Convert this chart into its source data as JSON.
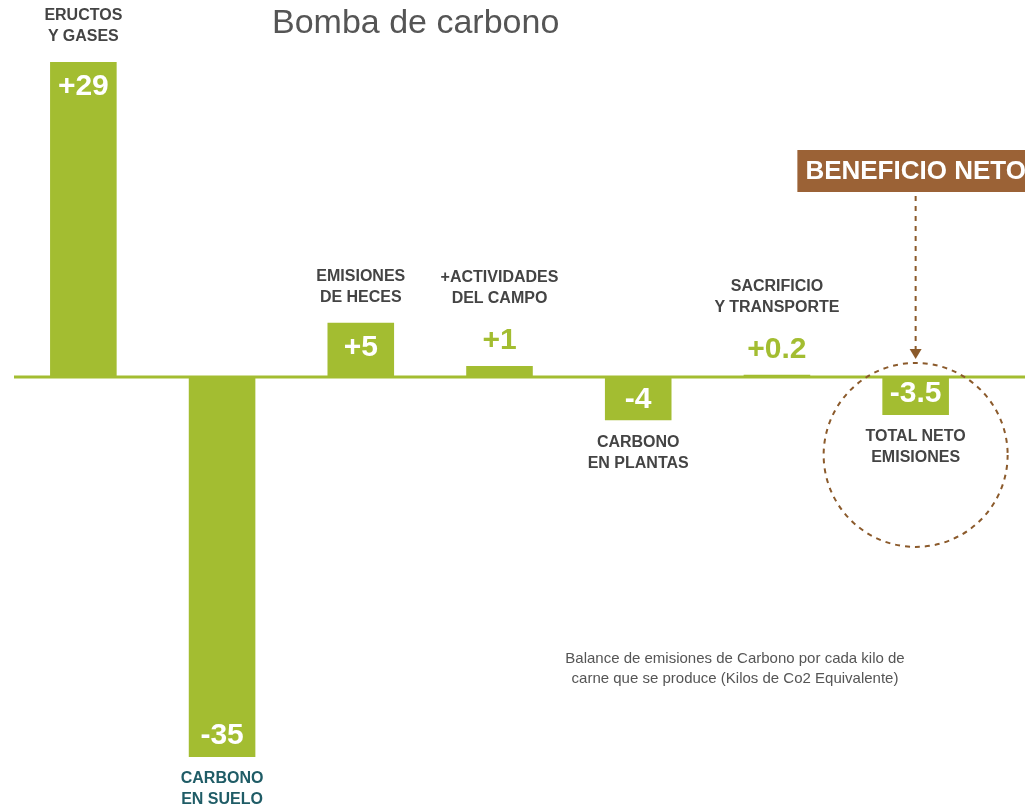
{
  "chart_data": {
    "type": "bar",
    "title": "Bomba de carbono",
    "subtitle": "Balance de emisiones de Carbono por cada kilo de\ncarne que se produce (Kilos de Co2 Equivalente)",
    "categories": [
      "ERUCTOS\nY GASES",
      "CARBONO\nEN SUELO",
      "EMISIONES\nDE HECES",
      "+ACTIVIDADES\nDEL CAMPO",
      "CARBONO\nEN PLANTAS",
      "SACRIFICIO\nY TRANSPORTE",
      "TOTAL NETO\nEMISIONES"
    ],
    "values": [
      29,
      -35,
      5,
      1,
      -4,
      0.2,
      -3.5
    ],
    "value_labels": [
      "+29",
      "-35",
      "+5",
      "+1",
      "-4",
      "+0.2",
      "-3.5"
    ],
    "color": "#a3bd31",
    "ref_lines": [
      {
        "axis": "y",
        "value": 0,
        "color": "#a3bd31"
      }
    ],
    "annotations": [
      "BENEFICIO NETO"
    ]
  }
}
